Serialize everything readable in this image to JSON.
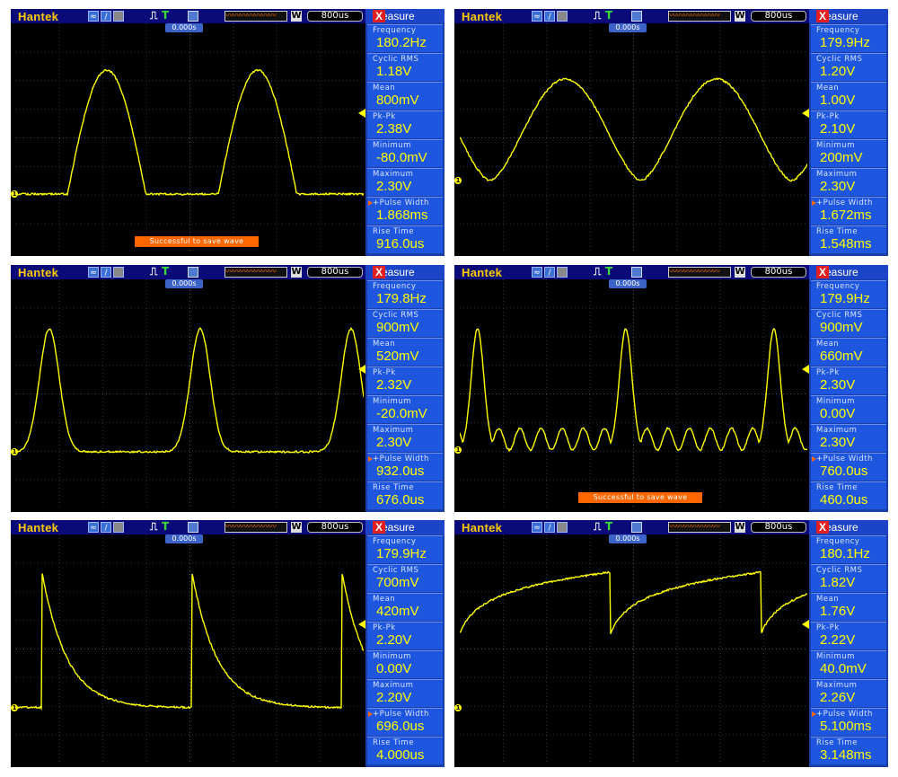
{
  "colors": {
    "trace": "#ffff00",
    "screen": "#000000",
    "panel": "#1e56e0",
    "brand": "#ffcc00",
    "toast": "#ff6600"
  },
  "icons": [
    "wave-type-icon",
    "ramp-icon",
    "gray-icon",
    "trigger-pulse-icon",
    "save-disk-icon",
    "close-icon"
  ],
  "panels": [
    {
      "brand": "Hantek",
      "timebase": "800us",
      "trigger_time": "0.000s",
      "title": "Measure",
      "close": "X",
      "toast": "Successful to save wave",
      "measurements": [
        {
          "label": "Frequency",
          "value": "180.2Hz"
        },
        {
          "label": "Cyclic RMS",
          "value": "1.18V"
        },
        {
          "label": "Mean",
          "value": "800mV"
        },
        {
          "label": "Pk-Pk",
          "value": "2.38V"
        },
        {
          "label": "Minimum",
          "value": "-80.0mV"
        },
        {
          "label": "Maximum",
          "value": "2.30V"
        },
        {
          "label": "+Pulse Width",
          "value": "1.868ms"
        },
        {
          "label": "Rise Time",
          "value": "916.0us"
        }
      ]
    },
    {
      "brand": "Hantek",
      "timebase": "800us",
      "trigger_time": "0.000s",
      "title": "Measure",
      "close": "X",
      "toast": "",
      "measurements": [
        {
          "label": "Frequency",
          "value": "179.9Hz"
        },
        {
          "label": "Cyclic RMS",
          "value": "1.20V"
        },
        {
          "label": "Mean",
          "value": "1.00V"
        },
        {
          "label": "Pk-Pk",
          "value": "2.10V"
        },
        {
          "label": "Minimum",
          "value": "200mV"
        },
        {
          "label": "Maximum",
          "value": "2.30V"
        },
        {
          "label": "+Pulse Width",
          "value": "1.672ms"
        },
        {
          "label": "Rise Time",
          "value": "1.548ms"
        }
      ]
    },
    {
      "brand": "Hantek",
      "timebase": "800us",
      "trigger_time": "0.000s",
      "title": "Measure",
      "close": "X",
      "toast": "",
      "measurements": [
        {
          "label": "Frequency",
          "value": "179.8Hz"
        },
        {
          "label": "Cyclic RMS",
          "value": "900mV"
        },
        {
          "label": "Mean",
          "value": "520mV"
        },
        {
          "label": "Pk-Pk",
          "value": "2.32V"
        },
        {
          "label": "Minimum",
          "value": "-20.0mV"
        },
        {
          "label": "Maximum",
          "value": "2.30V"
        },
        {
          "label": "+Pulse Width",
          "value": "932.0us"
        },
        {
          "label": "Rise Time",
          "value": "676.0us"
        }
      ]
    },
    {
      "brand": "Hantek",
      "timebase": "800us",
      "trigger_time": "0.000s",
      "title": "Measure",
      "close": "X",
      "toast": "Successful to save wave",
      "measurements": [
        {
          "label": "Frequency",
          "value": "179.9Hz"
        },
        {
          "label": "Cyclic RMS",
          "value": "900mV"
        },
        {
          "label": "Mean",
          "value": "660mV"
        },
        {
          "label": "Pk-Pk",
          "value": "2.30V"
        },
        {
          "label": "Minimum",
          "value": "0.00V"
        },
        {
          "label": "Maximum",
          "value": "2.30V"
        },
        {
          "label": "+Pulse Width",
          "value": "760.0us"
        },
        {
          "label": "Rise Time",
          "value": "460.0us"
        }
      ]
    },
    {
      "brand": "Hantek",
      "timebase": "800us",
      "trigger_time": "0.000s",
      "title": "Measure",
      "close": "X",
      "toast": "",
      "measurements": [
        {
          "label": "Frequency",
          "value": "179.9Hz"
        },
        {
          "label": "Cyclic RMS",
          "value": "700mV"
        },
        {
          "label": "Mean",
          "value": "420mV"
        },
        {
          "label": "Pk-Pk",
          "value": "2.20V"
        },
        {
          "label": "Minimum",
          "value": "0.00V"
        },
        {
          "label": "Maximum",
          "value": "2.20V"
        },
        {
          "label": "+Pulse Width",
          "value": "696.0us"
        },
        {
          "label": "Rise Time",
          "value": "4.000us"
        }
      ]
    },
    {
      "brand": "Hantek",
      "timebase": "800us",
      "trigger_time": "0.000s",
      "title": "Measure",
      "close": "X",
      "toast": "",
      "measurements": [
        {
          "label": "Frequency",
          "value": "180.1Hz"
        },
        {
          "label": "Cyclic RMS",
          "value": "1.82V"
        },
        {
          "label": "Mean",
          "value": "1.76V"
        },
        {
          "label": "Pk-Pk",
          "value": "2.22V"
        },
        {
          "label": "Minimum",
          "value": "40.0mV"
        },
        {
          "label": "Maximum",
          "value": "2.26V"
        },
        {
          "label": "+Pulse Width",
          "value": "5.100ms"
        },
        {
          "label": "Rise Time",
          "value": "3.148ms"
        }
      ]
    }
  ]
}
